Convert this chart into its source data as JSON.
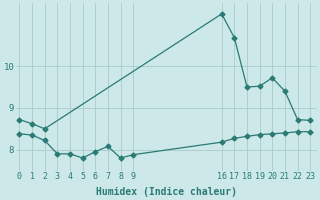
{
  "bg_color": "#cce8e8",
  "line_color": "#2a7a75",
  "grid_color": "#aacaca",
  "xlabel": "Humidex (Indice chaleur)",
  "xticks": [
    0,
    1,
    2,
    3,
    4,
    5,
    6,
    7,
    8,
    9,
    16,
    17,
    18,
    19,
    20,
    21,
    22,
    23
  ],
  "yticks": [
    8,
    9,
    10
  ],
  "ylim": [
    7.5,
    11.5
  ],
  "xlim": [
    -0.3,
    23.5
  ],
  "line1_x": [
    0,
    1,
    2,
    16,
    17,
    18,
    19,
    20,
    21,
    22,
    23
  ],
  "line1_y": [
    8.72,
    8.62,
    8.5,
    11.25,
    10.68,
    9.5,
    9.52,
    9.72,
    9.4,
    8.72,
    8.7
  ],
  "line2_x": [
    0,
    1,
    2,
    3,
    4,
    5,
    6,
    7,
    8,
    9,
    16,
    17,
    18,
    19,
    20,
    21,
    22,
    23
  ],
  "line2_y": [
    8.38,
    8.35,
    8.22,
    7.9,
    7.9,
    7.8,
    7.95,
    8.08,
    7.8,
    7.88,
    8.18,
    8.27,
    8.32,
    8.36,
    8.38,
    8.4,
    8.43,
    8.43
  ],
  "marker": "D",
  "markersize": 2.5,
  "linewidth": 0.9,
  "tick_fontsize": 6,
  "xlabel_fontsize": 7,
  "figsize": [
    3.2,
    2.0
  ],
  "dpi": 100
}
